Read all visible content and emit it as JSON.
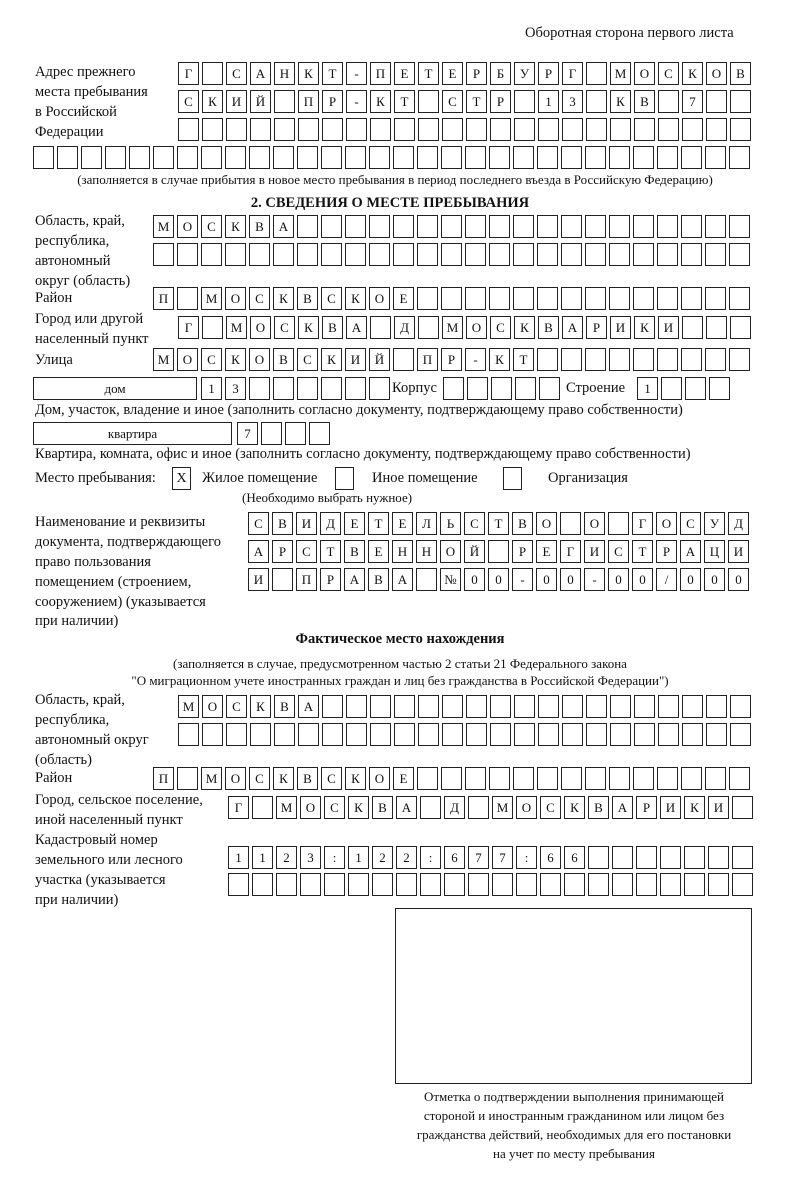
{
  "page_header": "Оборотная сторона первого листа",
  "previous_address": {
    "label": [
      "Адрес прежнего",
      "места пребывания",
      "в Российской",
      "Федерации"
    ],
    "rows": [
      [
        "Г",
        "",
        "С",
        "А",
        "Н",
        "К",
        "Т",
        "-",
        "П",
        "Е",
        "Т",
        "Е",
        "Р",
        "Б",
        "У",
        "Р",
        "Г",
        "",
        "М",
        "О",
        "С",
        "К",
        "О",
        "В"
      ],
      [
        "С",
        "К",
        "И",
        "Й",
        "",
        "П",
        "Р",
        "-",
        "К",
        "Т",
        "",
        "С",
        "Т",
        "Р",
        "",
        "1",
        "3",
        "",
        "К",
        "В",
        "",
        "7",
        "",
        ""
      ],
      [
        "",
        "",
        "",
        "",
        "",
        "",
        "",
        "",
        "",
        "",
        "",
        "",
        "",
        "",
        "",
        "",
        "",
        "",
        "",
        "",
        "",
        "",
        "",
        ""
      ]
    ],
    "extra_row_count": 30,
    "note": "(заполняется в случае прибытия в новое место пребывания в период последнего въезда в Российскую Федерацию)"
  },
  "section2": {
    "title": "2. СВЕДЕНИЯ О МЕСТЕ ПРЕБЫВАНИЯ",
    "region_label": [
      "Область, край,",
      "республика,",
      "автономный",
      "округ (область)"
    ],
    "region_rows": [
      [
        "М",
        "О",
        "С",
        "К",
        "В",
        "А",
        "",
        "",
        "",
        "",
        "",
        "",
        "",
        "",
        "",
        "",
        "",
        "",
        "",
        "",
        "",
        "",
        "",
        "",
        ""
      ],
      [
        "",
        "",
        "",
        "",
        "",
        "",
        "",
        "",
        "",
        "",
        "",
        "",
        "",
        "",
        "",
        "",
        "",
        "",
        "",
        "",
        "",
        "",
        "",
        "",
        ""
      ]
    ],
    "district_label": "Район",
    "district_row": [
      "П",
      "",
      "М",
      "О",
      "С",
      "К",
      "В",
      "С",
      "К",
      "О",
      "Е",
      "",
      "",
      "",
      "",
      "",
      "",
      "",
      "",
      "",
      "",
      "",
      "",
      "",
      ""
    ],
    "city_label": [
      "Город или другой",
      "населенный пункт"
    ],
    "city_row": [
      "Г",
      "",
      "М",
      "О",
      "С",
      "К",
      "В",
      "А",
      "",
      "Д",
      "",
      "М",
      "О",
      "С",
      "К",
      "В",
      "А",
      "Р",
      "И",
      "К",
      "И",
      "",
      "",
      ""
    ],
    "street_label": "Улица",
    "street_row": [
      "М",
      "О",
      "С",
      "К",
      "О",
      "В",
      "С",
      "К",
      "И",
      "Й",
      "",
      "П",
      "Р",
      "-",
      "К",
      "Т",
      "",
      "",
      "",
      "",
      "",
      "",
      "",
      "",
      ""
    ],
    "house_type": "дом",
    "house_cells": [
      "1",
      "3",
      "",
      "",
      "",
      "",
      "",
      ""
    ],
    "building_label": "Корпус",
    "building_cells": [
      "",
      "",
      "",
      "",
      ""
    ],
    "structure_label": "Строение",
    "structure_cells": [
      "1",
      "",
      "",
      ""
    ],
    "house_note": "Дом, участок, владение и иное (заполнить согласно документу, подтверждающему право собственности)",
    "apartment_type": "квартира",
    "apartment_cells": [
      "7",
      "",
      "",
      ""
    ],
    "apartment_note": "Квартира, комната, офис и иное (заполнить согласно документу, подтверждающему право собственности)",
    "stay_place_label": "Место пребывания:",
    "stay_options": [
      {
        "label": "Жилое помещение",
        "mark": "X"
      },
      {
        "label": "Иное помещение",
        "mark": ""
      },
      {
        "label": "Организация",
        "mark": ""
      }
    ],
    "stay_note": "(Необходимо выбрать нужное)",
    "document_label": [
      "Наименование и реквизиты",
      "документа, подтверждающего",
      "право пользования",
      "помещением (строением,",
      "сооружением) (указывается",
      "при наличии)"
    ],
    "document_rows": [
      [
        "С",
        "В",
        "И",
        "Д",
        "Е",
        "Т",
        "Е",
        "Л",
        "Ь",
        "С",
        "Т",
        "В",
        "О",
        "",
        "О",
        "",
        "Г",
        "О",
        "С",
        "У",
        "Д"
      ],
      [
        "А",
        "Р",
        "С",
        "Т",
        "В",
        "Е",
        "Н",
        "Н",
        "О",
        "Й",
        "",
        "Р",
        "Е",
        "Г",
        "И",
        "С",
        "Т",
        "Р",
        "А",
        "Ц",
        "И"
      ],
      [
        "И",
        "",
        "П",
        "Р",
        "А",
        "В",
        "А",
        "",
        "№",
        "0",
        "0",
        "-",
        "0",
        "0",
        "-",
        "0",
        "0",
        "/",
        "0",
        "0",
        "0"
      ]
    ]
  },
  "actual_location": {
    "title": "Фактическое место нахождения",
    "note_lines": [
      "(заполняется в случае, предусмотренном частью 2 статьи 21 Федерального закона",
      "\"О миграционном учете иностранных граждан и лиц без гражданства в Российской Федерации\")"
    ],
    "region_label": [
      "Область, край,",
      "республика,",
      "автономный округ",
      "(область)"
    ],
    "region_rows": [
      [
        "М",
        "О",
        "С",
        "К",
        "В",
        "А",
        "",
        "",
        "",
        "",
        "",
        "",
        "",
        "",
        "",
        "",
        "",
        "",
        "",
        "",
        "",
        "",
        "",
        ""
      ],
      [
        "",
        "",
        "",
        "",
        "",
        "",
        "",
        "",
        "",
        "",
        "",
        "",
        "",
        "",
        "",
        "",
        "",
        "",
        "",
        "",
        "",
        "",
        "",
        ""
      ]
    ],
    "district_label": "Район",
    "district_row": [
      "П",
      "",
      "М",
      "О",
      "С",
      "К",
      "В",
      "С",
      "К",
      "О",
      "Е",
      "",
      "",
      "",
      "",
      "",
      "",
      "",
      "",
      "",
      "",
      "",
      "",
      "",
      ""
    ],
    "city_label": [
      "Город, сельское поселение,",
      "иной населенный пункт"
    ],
    "city_row": [
      "Г",
      "",
      "М",
      "О",
      "С",
      "К",
      "В",
      "А",
      "",
      "Д",
      "",
      "М",
      "О",
      "С",
      "К",
      "В",
      "А",
      "Р",
      "И",
      "К",
      "И",
      ""
    ],
    "cadastral_label": [
      "Кадастровый номер",
      "земельного или лесного",
      "участка (указывается",
      "при наличии)"
    ],
    "cadastral_rows": [
      [
        "1",
        "1",
        "2",
        "3",
        ":",
        "1",
        "2",
        "2",
        ":",
        "6",
        "7",
        "7",
        ":",
        "6",
        "6",
        "",
        "",
        "",
        "",
        "",
        "",
        ""
      ],
      [
        "",
        "",
        "",
        "",
        "",
        "",
        "",
        "",
        "",
        "",
        "",
        "",
        "",
        "",
        "",
        "",
        "",
        "",
        "",
        "",
        "",
        ""
      ]
    ]
  },
  "confirmation_caption": [
    "Отметка о подтверждении выполнения принимающей",
    "стороной и иностранным гражданином или лицом без",
    "гражданства действий, необходимых для его постановки",
    "на учет по месту пребывания"
  ]
}
